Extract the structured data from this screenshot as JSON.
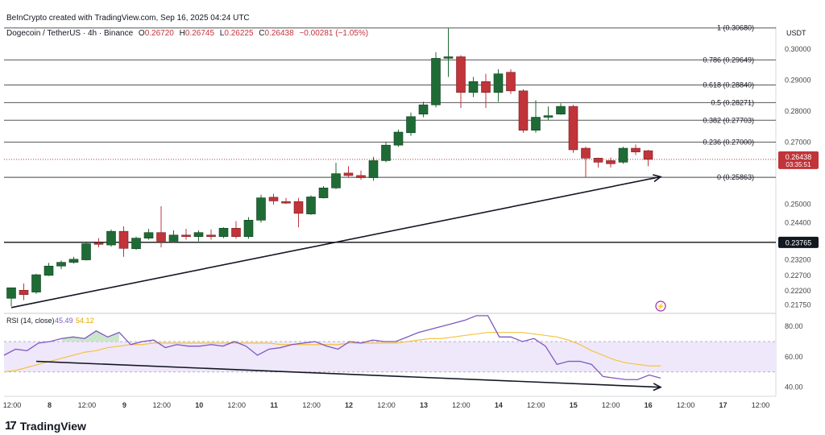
{
  "header": {
    "credit": "BeInCrypto created with TradingView.com, Sep 16, 2025 04:24 UTC",
    "symbol": "Dogecoin / TetherUS · 4h · Binance",
    "o_label": "O",
    "o_value": "0.26720",
    "h_label": "H",
    "h_value": "0.26745",
    "l_label": "L",
    "l_value": "0.26225",
    "c_label": "C",
    "c_value": "0.26438",
    "change": "−0.00281 (−1.05%)"
  },
  "brand": {
    "logo_icon": "tradingview-logo-icon",
    "name": "TradingView"
  },
  "colors": {
    "up": "#1f6b35",
    "down": "#c0343a",
    "rsi": "#7e57c2",
    "rsi_ma": "#f5c242",
    "rsi_fill": "#efe8fa",
    "ob_fill": "#c6e3c7"
  },
  "chart_data": [
    {
      "type": "candlestick",
      "title": "Dogecoin / TetherUS · 4h · Binance",
      "currency": "USDT",
      "ylim": [
        0.215,
        0.3075
      ],
      "x_ticks": [
        "12:00",
        "8",
        "12:00",
        "9",
        "12:00",
        "10",
        "12:00",
        "11",
        "12:00",
        "12",
        "12:00",
        "13",
        "12:00",
        "14",
        "12:00",
        "15",
        "12:00",
        "16",
        "12:00",
        "17",
        "12:00"
      ],
      "y_ticks": [
        "0.30000",
        "0.29000",
        "0.28000",
        "0.27000",
        "0.25000",
        "0.24400",
        "0.23200",
        "0.22700",
        "0.22200",
        "0.21750"
      ],
      "price_label": {
        "value": "0.26438",
        "countdown": "03:35:51"
      },
      "horizontal_level": {
        "value": 0.23765,
        "label": "0.23765"
      },
      "fibonacci": [
        {
          "ratio": "1",
          "value": 0.3068
        },
        {
          "ratio": "0.786",
          "value": 0.29649
        },
        {
          "ratio": "0.618",
          "value": 0.2884
        },
        {
          "ratio": "0.5",
          "value": 0.28271
        },
        {
          "ratio": "0.382",
          "value": 0.27703
        },
        {
          "ratio": "0.236",
          "value": 0.27
        },
        {
          "ratio": "0",
          "value": 0.25863
        }
      ],
      "trend_arrow": {
        "from": [
          0,
          0.2166
        ],
        "to": [
          52,
          0.2588
        ]
      },
      "candles": [
        {
          "o": 0.2196,
          "h": 0.223,
          "l": 0.217,
          "c": 0.223
        },
        {
          "o": 0.2222,
          "h": 0.2244,
          "l": 0.219,
          "c": 0.2208
        },
        {
          "o": 0.2216,
          "h": 0.2275,
          "l": 0.221,
          "c": 0.2272
        },
        {
          "o": 0.227,
          "h": 0.231,
          "l": 0.2268,
          "c": 0.23
        },
        {
          "o": 0.23,
          "h": 0.2318,
          "l": 0.229,
          "c": 0.2312
        },
        {
          "o": 0.2312,
          "h": 0.233,
          "l": 0.2308,
          "c": 0.2322
        },
        {
          "o": 0.232,
          "h": 0.2376,
          "l": 0.2318,
          "c": 0.2372
        },
        {
          "o": 0.2375,
          "h": 0.239,
          "l": 0.236,
          "c": 0.237
        },
        {
          "o": 0.2368,
          "h": 0.2418,
          "l": 0.2362,
          "c": 0.2412
        },
        {
          "o": 0.2412,
          "h": 0.2428,
          "l": 0.233,
          "c": 0.2357
        },
        {
          "o": 0.2356,
          "h": 0.2395,
          "l": 0.2352,
          "c": 0.239
        },
        {
          "o": 0.239,
          "h": 0.242,
          "l": 0.2385,
          "c": 0.2408
        },
        {
          "o": 0.2408,
          "h": 0.2493,
          "l": 0.236,
          "c": 0.238
        },
        {
          "o": 0.238,
          "h": 0.2415,
          "l": 0.2375,
          "c": 0.24
        },
        {
          "o": 0.24,
          "h": 0.242,
          "l": 0.2385,
          "c": 0.2395
        },
        {
          "o": 0.2395,
          "h": 0.2415,
          "l": 0.238,
          "c": 0.2408
        },
        {
          "o": 0.24,
          "h": 0.2418,
          "l": 0.2385,
          "c": 0.2395
        },
        {
          "o": 0.2395,
          "h": 0.2425,
          "l": 0.239,
          "c": 0.2422
        },
        {
          "o": 0.2422,
          "h": 0.2445,
          "l": 0.2388,
          "c": 0.2395
        },
        {
          "o": 0.2395,
          "h": 0.2458,
          "l": 0.2388,
          "c": 0.2448
        },
        {
          "o": 0.2448,
          "h": 0.253,
          "l": 0.244,
          "c": 0.252
        },
        {
          "o": 0.2522,
          "h": 0.2533,
          "l": 0.2498,
          "c": 0.251
        },
        {
          "o": 0.2508,
          "h": 0.252,
          "l": 0.25,
          "c": 0.2503
        },
        {
          "o": 0.2508,
          "h": 0.252,
          "l": 0.2425,
          "c": 0.247
        },
        {
          "o": 0.2468,
          "h": 0.2528,
          "l": 0.2465,
          "c": 0.2523
        },
        {
          "o": 0.252,
          "h": 0.2558,
          "l": 0.2518,
          "c": 0.2552
        },
        {
          "o": 0.2552,
          "h": 0.2633,
          "l": 0.2548,
          "c": 0.2598
        },
        {
          "o": 0.26,
          "h": 0.2622,
          "l": 0.2585,
          "c": 0.2592
        },
        {
          "o": 0.2592,
          "h": 0.2608,
          "l": 0.2578,
          "c": 0.2585
        },
        {
          "o": 0.2585,
          "h": 0.2652,
          "l": 0.2575,
          "c": 0.264
        },
        {
          "o": 0.264,
          "h": 0.27,
          "l": 0.2635,
          "c": 0.269
        },
        {
          "o": 0.269,
          "h": 0.274,
          "l": 0.2685,
          "c": 0.2732
        },
        {
          "o": 0.273,
          "h": 0.2795,
          "l": 0.272,
          "c": 0.2782
        },
        {
          "o": 0.279,
          "h": 0.283,
          "l": 0.278,
          "c": 0.282
        },
        {
          "o": 0.282,
          "h": 0.299,
          "l": 0.2812,
          "c": 0.297
        },
        {
          "o": 0.297,
          "h": 0.3068,
          "l": 0.291,
          "c": 0.2975
        },
        {
          "o": 0.2975,
          "h": 0.298,
          "l": 0.281,
          "c": 0.286
        },
        {
          "o": 0.286,
          "h": 0.291,
          "l": 0.2845,
          "c": 0.2895
        },
        {
          "o": 0.2895,
          "h": 0.292,
          "l": 0.281,
          "c": 0.286
        },
        {
          "o": 0.286,
          "h": 0.2935,
          "l": 0.283,
          "c": 0.292
        },
        {
          "o": 0.2925,
          "h": 0.2935,
          "l": 0.2855,
          "c": 0.2865
        },
        {
          "o": 0.2865,
          "h": 0.287,
          "l": 0.273,
          "c": 0.2738
        },
        {
          "o": 0.2738,
          "h": 0.2835,
          "l": 0.273,
          "c": 0.278
        },
        {
          "o": 0.278,
          "h": 0.2815,
          "l": 0.277,
          "c": 0.2785
        },
        {
          "o": 0.279,
          "h": 0.2825,
          "l": 0.2788,
          "c": 0.2815
        },
        {
          "o": 0.2815,
          "h": 0.282,
          "l": 0.2665,
          "c": 0.2675
        },
        {
          "o": 0.268,
          "h": 0.2685,
          "l": 0.2585,
          "c": 0.2648
        },
        {
          "o": 0.2648,
          "h": 0.265,
          "l": 0.2618,
          "c": 0.2635
        },
        {
          "o": 0.264,
          "h": 0.265,
          "l": 0.2618,
          "c": 0.263
        },
        {
          "o": 0.2635,
          "h": 0.2685,
          "l": 0.263,
          "c": 0.268
        },
        {
          "o": 0.268,
          "h": 0.2692,
          "l": 0.2658,
          "c": 0.2668
        },
        {
          "o": 0.2672,
          "h": 0.2675,
          "l": 0.2622,
          "c": 0.2644
        }
      ]
    },
    {
      "type": "line",
      "title": "RSI (14, close)",
      "rsi_value": "45.49",
      "ma_value": "54.12",
      "ylim": [
        34,
        88
      ],
      "y_ticks": [
        "80.00",
        "60.00",
        "40.00"
      ],
      "bands": [
        70,
        50
      ],
      "trend_arrow": {
        "from": [
          2,
          57
        ],
        "to": [
          52,
          40
        ]
      },
      "series": [
        {
          "name": "RSI",
          "values": [
            61,
            65,
            64,
            69,
            70,
            72,
            73,
            72,
            77,
            73,
            76,
            68,
            70,
            71,
            66,
            68,
            67,
            67,
            68,
            67,
            70,
            67,
            61,
            65,
            66,
            68,
            69,
            70,
            67,
            65,
            70,
            69,
            71,
            70,
            70,
            73,
            76,
            78,
            80,
            82,
            84,
            87,
            87,
            73,
            73,
            70,
            72,
            67,
            55,
            57,
            57,
            55,
            47,
            46,
            45,
            45,
            48,
            46
          ]
        },
        {
          "name": "RSI MA",
          "values": [
            50,
            51,
            53,
            55,
            57,
            59,
            61,
            63,
            64,
            66,
            67,
            68,
            68,
            69,
            69,
            69,
            69,
            69,
            69,
            69,
            69,
            69,
            69,
            69,
            68,
            68,
            68,
            68,
            68,
            68,
            69,
            69,
            69,
            69,
            69,
            70,
            71,
            72,
            72,
            73,
            74,
            75,
            76,
            76,
            76,
            76,
            75,
            74,
            73,
            71,
            68,
            64,
            61,
            58,
            56,
            55,
            54,
            54
          ]
        }
      ]
    }
  ]
}
